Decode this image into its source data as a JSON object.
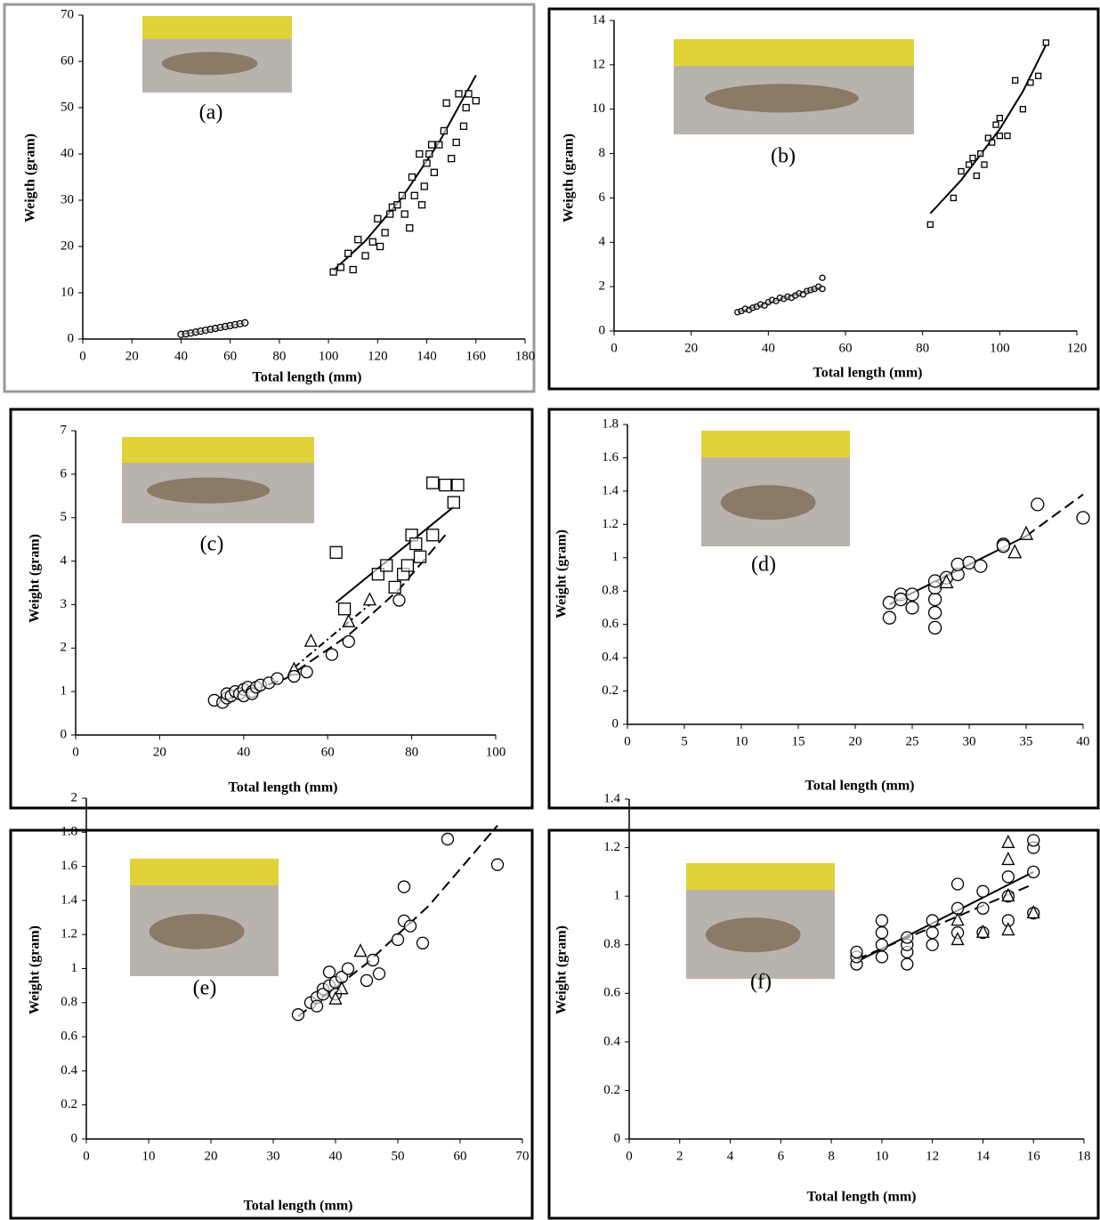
{
  "chart_data": [
    {
      "type": "scatter",
      "label": "(a)",
      "ylabel": "Weigth (gram)",
      "xlabel": "Total length (mm)",
      "xlim": [
        0,
        180
      ],
      "xticks": [
        0,
        20,
        40,
        60,
        80,
        100,
        120,
        140,
        160,
        180
      ],
      "ylim": [
        0,
        70
      ],
      "yticks": [
        0,
        10,
        20,
        30,
        40,
        50,
        60,
        70
      ],
      "series": [
        {
          "marker": "circle",
          "x": [
            40,
            42,
            44,
            46,
            48,
            50,
            52,
            54,
            56,
            58,
            60,
            62,
            64,
            66
          ],
          "values": [
            1,
            1.1,
            1.3,
            1.5,
            1.7,
            1.9,
            2.1,
            2.3,
            2.5,
            2.7,
            2.9,
            3.1,
            3.3,
            3.5
          ]
        },
        {
          "marker": "square",
          "x": [
            102,
            105,
            110,
            108,
            112,
            115,
            118,
            120,
            121,
            123,
            125,
            126,
            128,
            130,
            131,
            133,
            134,
            135,
            137,
            138,
            139,
            140,
            141,
            142,
            143,
            145,
            147,
            148,
            150,
            152,
            153,
            155,
            156,
            157,
            160
          ],
          "values": [
            14.5,
            15.5,
            15,
            18.5,
            21.5,
            18,
            21,
            26,
            20,
            23,
            27,
            28.5,
            29,
            31,
            27,
            24,
            35,
            31,
            40,
            29,
            33,
            38,
            40,
            42,
            36,
            42,
            45,
            51,
            39,
            42.5,
            53,
            46,
            50,
            53,
            51.5
          ]
        }
      ],
      "fits": [
        {
          "dash": "solid",
          "x": [
            40,
            53,
            66
          ],
          "values": [
            1,
            2.1,
            3.5
          ]
        },
        {
          "dash": "solid",
          "x": [
            102,
            115,
            130,
            145,
            160
          ],
          "values": [
            14.8,
            21.2,
            30.6,
            42.5,
            57
          ]
        }
      ]
    },
    {
      "type": "scatter",
      "label": "(b)",
      "ylabel": "Weigth (gram)",
      "xlabel": "Total length (mm)",
      "xlim": [
        0,
        120
      ],
      "xticks": [
        0,
        20,
        40,
        60,
        80,
        100,
        120
      ],
      "ylim": [
        0,
        14
      ],
      "yticks": [
        0,
        2,
        4,
        6,
        8,
        10,
        12,
        14
      ],
      "series": [
        {
          "marker": "circle",
          "x": [
            32,
            33,
            34,
            35,
            36,
            37,
            38,
            39,
            40,
            41,
            42,
            43,
            44,
            45,
            46,
            47,
            48,
            49,
            50,
            51,
            52,
            53,
            54,
            54
          ],
          "values": [
            0.85,
            0.9,
            1,
            0.95,
            1.05,
            1.1,
            1.2,
            1.15,
            1.3,
            1.4,
            1.35,
            1.5,
            1.45,
            1.55,
            1.5,
            1.6,
            1.7,
            1.65,
            1.8,
            1.85,
            1.9,
            2,
            1.9,
            2.4
          ]
        },
        {
          "marker": "square",
          "x": [
            82,
            88,
            90,
            92,
            93,
            94,
            95,
            96,
            97,
            98,
            99,
            100,
            100,
            102,
            104,
            106,
            108,
            110,
            112
          ],
          "values": [
            4.8,
            6,
            7.2,
            7.5,
            7.8,
            7,
            8,
            7.5,
            8.7,
            8.5,
            9.3,
            9.6,
            8.8,
            8.8,
            11.3,
            10,
            11.2,
            11.5,
            13
          ]
        }
      ],
      "fits": [
        {
          "dash": "solid",
          "x": [
            32,
            54
          ],
          "values": [
            0.85,
            2
          ]
        },
        {
          "dash": "solid",
          "x": [
            82,
            90,
            100,
            106,
            112
          ],
          "values": [
            5.3,
            6.8,
            9.1,
            10.8,
            12.9
          ]
        }
      ]
    },
    {
      "type": "scatter",
      "label": "(c)",
      "ylabel": "Weight (gram)",
      "xlabel": "Total length (mm)",
      "xlim": [
        0,
        100
      ],
      "xticks": [
        0,
        20,
        40,
        60,
        80,
        100
      ],
      "ylim": [
        0,
        7
      ],
      "yticks": [
        0,
        1,
        2,
        3,
        4,
        5,
        6,
        7
      ],
      "series": [
        {
          "marker": "square",
          "x": [
            62,
            64,
            72,
            74,
            76,
            78,
            79,
            80,
            81,
            82,
            85,
            85,
            88,
            90,
            91
          ],
          "values": [
            4.2,
            2.9,
            3.7,
            3.9,
            3.4,
            3.7,
            3.9,
            4.6,
            4.4,
            4.1,
            4.6,
            5.8,
            5.75,
            5.35,
            5.75
          ]
        },
        {
          "marker": "triangle",
          "x": [
            52,
            56,
            65,
            70
          ],
          "values": [
            1.5,
            2.15,
            2.6,
            3.1
          ]
        },
        {
          "marker": "circle",
          "x": [
            33,
            35,
            36,
            36,
            37,
            38,
            39,
            40,
            40,
            41,
            42,
            42,
            43,
            44,
            46,
            48,
            52,
            55,
            61,
            65,
            77
          ],
          "values": [
            0.8,
            0.75,
            0.85,
            0.95,
            0.9,
            1,
            0.95,
            1.05,
            0.9,
            1.1,
            1,
            0.95,
            1.1,
            1.15,
            1.2,
            1.3,
            1.35,
            1.45,
            1.85,
            2.15,
            3.1
          ]
        }
      ],
      "fits": [
        {
          "dash": "solid",
          "x": [
            62,
            90
          ],
          "values": [
            3.05,
            5.25
          ]
        },
        {
          "dash": "dashdot",
          "x": [
            52,
            60,
            70
          ],
          "values": [
            1.55,
            2.2,
            3
          ]
        },
        {
          "dash": "dashed",
          "x": [
            35,
            50,
            65,
            77,
            88
          ],
          "values": [
            0.8,
            1.3,
            2.3,
            3.35,
            4.6
          ]
        }
      ]
    },
    {
      "type": "scatter",
      "label": "(d)",
      "ylabel": "Weight (gram)",
      "xlabel": "Total length (mm)",
      "xlim": [
        0,
        40
      ],
      "xticks": [
        0,
        5,
        10,
        15,
        20,
        25,
        30,
        35,
        40
      ],
      "ylim": [
        0,
        1.8
      ],
      "yticks": [
        0,
        0.2,
        0.4,
        0.6,
        0.8,
        1,
        1.2,
        1.4,
        1.6,
        1.8
      ],
      "series": [
        {
          "marker": "circle",
          "x": [
            23,
            23,
            24,
            24,
            25,
            25,
            27,
            27,
            27,
            27,
            27,
            28,
            29,
            29,
            30,
            31,
            33,
            33,
            36,
            40
          ],
          "values": [
            0.64,
            0.73,
            0.78,
            0.75,
            0.7,
            0.78,
            0.58,
            0.67,
            0.75,
            0.82,
            0.86,
            0.88,
            0.9,
            0.96,
            0.97,
            0.95,
            1.08,
            1.07,
            1.32,
            1.24
          ]
        },
        {
          "marker": "triangle",
          "x": [
            28,
            34,
            35
          ],
          "values": [
            0.85,
            1.03,
            1.14
          ]
        }
      ],
      "fits": [
        {
          "dash": "solid",
          "x": [
            23,
            35
          ],
          "values": [
            0.72,
            1.13
          ]
        },
        {
          "dash": "dashed",
          "x": [
            35,
            40
          ],
          "values": [
            1.13,
            1.38
          ]
        }
      ]
    },
    {
      "type": "scatter",
      "label": "(e)",
      "ylabel": "Weight (gram)",
      "xlabel": "Total length (mm)",
      "xlim": [
        0,
        70
      ],
      "xticks": [
        0,
        10,
        20,
        30,
        40,
        50,
        60,
        70
      ],
      "ylim": [
        0,
        2
      ],
      "yticks": [
        0,
        0.2,
        0.4,
        0.6,
        0.8,
        1,
        1.2,
        1.4,
        1.6,
        1.8,
        2
      ],
      "series": [
        {
          "marker": "circle",
          "x": [
            34,
            36,
            37,
            37,
            38,
            38,
            39,
            39,
            40,
            40,
            41,
            42,
            45,
            46,
            47,
            50,
            51,
            51,
            52,
            54,
            58,
            66
          ],
          "values": [
            0.73,
            0.8,
            0.83,
            0.78,
            0.88,
            0.85,
            0.98,
            0.9,
            0.92,
            0.85,
            0.95,
            1,
            0.93,
            1.05,
            0.97,
            1.17,
            1.48,
            1.28,
            1.25,
            1.15,
            1.76,
            1.61
          ]
        },
        {
          "marker": "triangle",
          "x": [
            40,
            41,
            44
          ],
          "values": [
            0.82,
            0.88,
            1.1
          ]
        }
      ],
      "fits": [
        {
          "dash": "dashed",
          "x": [
            34,
            45,
            55,
            66
          ],
          "values": [
            0.72,
            1.03,
            1.37,
            1.84
          ]
        }
      ]
    },
    {
      "type": "scatter",
      "label": "(f)",
      "ylabel": "Weight (gram)",
      "xlabel": "Total length (mm)",
      "xlim": [
        0,
        18
      ],
      "xticks": [
        0,
        2,
        4,
        6,
        8,
        10,
        12,
        14,
        16,
        18
      ],
      "ylim": [
        0,
        1.4
      ],
      "yticks": [
        0,
        0.2,
        0.4,
        0.6,
        0.8,
        1,
        1.2,
        1.4
      ],
      "series": [
        {
          "marker": "circle",
          "x": [
            9,
            9,
            9,
            10,
            10,
            10,
            10,
            11,
            11,
            11,
            11,
            12,
            12,
            12,
            13,
            13,
            13,
            14,
            14,
            14,
            15,
            15,
            15,
            16,
            16,
            16,
            16
          ],
          "values": [
            0.72,
            0.75,
            0.77,
            0.75,
            0.8,
            0.85,
            0.9,
            0.72,
            0.77,
            0.8,
            0.83,
            0.8,
            0.85,
            0.9,
            0.85,
            0.95,
            1.05,
            0.85,
            0.95,
            1.02,
            0.9,
            1,
            1.08,
            0.93,
            1.1,
            1.2,
            1.23
          ]
        },
        {
          "marker": "triangle",
          "x": [
            13,
            13,
            14,
            15,
            15,
            15,
            15,
            16
          ],
          "values": [
            0.82,
            0.9,
            0.85,
            0.86,
            1,
            1.15,
            1.22,
            0.93
          ]
        }
      ],
      "fits": [
        {
          "dash": "solid",
          "x": [
            9,
            16
          ],
          "values": [
            0.73,
            1.1
          ]
        },
        {
          "dash": "dashed",
          "x": [
            9,
            16
          ],
          "values": [
            0.74,
            1.05
          ]
        }
      ]
    }
  ]
}
